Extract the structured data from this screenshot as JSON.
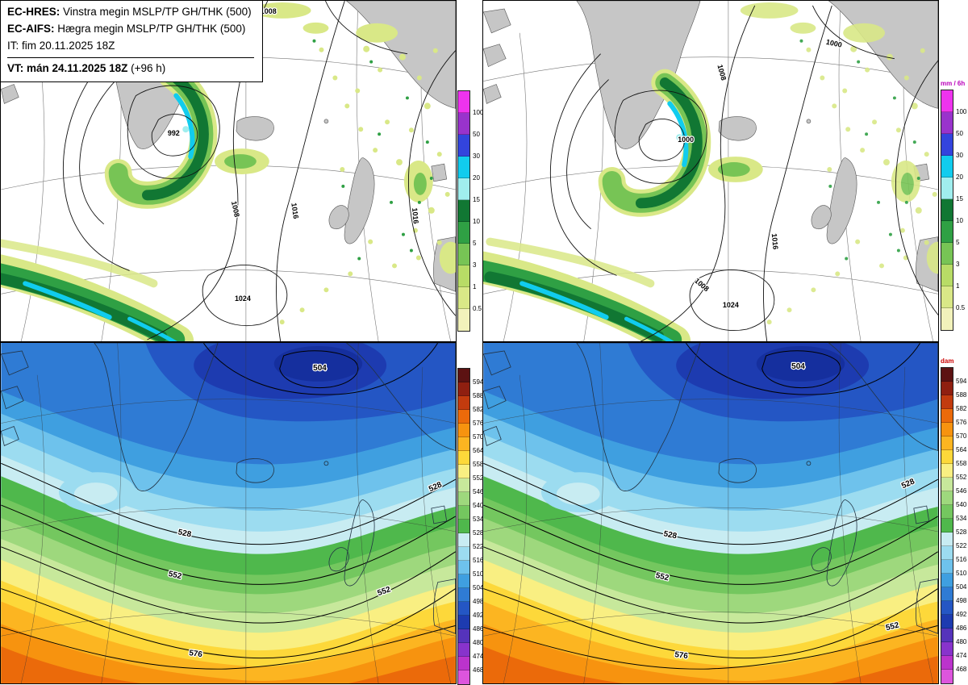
{
  "header": {
    "model1_label": "EC-HRES:",
    "model1_desc": "Vinstra megin MSLP/TP GH/THK (500)",
    "model2_label": "EC-AIFS:",
    "model2_desc": "Hægra megin MSLP/TP GH/THK (500)",
    "init_label": "IT:",
    "init_value": "fim 20.11.2025 18Z",
    "valid_label": "VT:",
    "valid_value": "mán 24.11.2025 18Z",
    "valid_offset": "(+96 h)"
  },
  "legends": {
    "precip": {
      "title": "mm / 6h",
      "title_color": "#bb00bb",
      "labels": [
        "100",
        "50",
        "30",
        "20",
        "15",
        "10",
        "5",
        "3",
        "1",
        "0.5"
      ],
      "colors": [
        "#ee33ee",
        "#9933cc",
        "#3344dd",
        "#11ccee",
        "#a0eeee",
        "#117733",
        "#2fa044",
        "#77c455",
        "#b8dc66",
        "#d9e887",
        "#f2f2bb"
      ]
    },
    "thickness": {
      "title": "dam",
      "title_color": "#cc0000",
      "labels": [
        "594",
        "588",
        "582",
        "576",
        "570",
        "564",
        "558",
        "552",
        "546",
        "540",
        "534",
        "528",
        "522",
        "516",
        "510",
        "504",
        "498",
        "492",
        "486",
        "480",
        "474",
        "468"
      ],
      "colors": [
        "#5c1212",
        "#8f1f10",
        "#c23b0e",
        "#eb6a0a",
        "#f7930f",
        "#fcb521",
        "#fdd83a",
        "#f9ef82",
        "#c7e89b",
        "#9ed87d",
        "#74c75f",
        "#4fb84c",
        "#c8ecf2",
        "#9cdcf0",
        "#6ec2ec",
        "#3f9fe0",
        "#2f7bd4",
        "#2456c4",
        "#1d3bb0",
        "#5533bb",
        "#8833cc",
        "#bb33cc",
        "#dd55dd"
      ]
    }
  },
  "maps": {
    "top_left": {
      "labels": [
        "992",
        "1008",
        "1008",
        "1016",
        "1024",
        "1016"
      ]
    },
    "top_right": {
      "labels": [
        "1000",
        "1008",
        "1000",
        "1008",
        "1016",
        "1024"
      ]
    },
    "bottom_left": {
      "labels": [
        "504",
        "528",
        "528",
        "552",
        "552",
        "576"
      ]
    },
    "bottom_right": {
      "labels": [
        "504",
        "528",
        "528",
        "552",
        "552",
        "576"
      ]
    }
  },
  "palette": {
    "land": "#c6c6c6",
    "sea": "#ffffff",
    "contour": "#000000"
  }
}
